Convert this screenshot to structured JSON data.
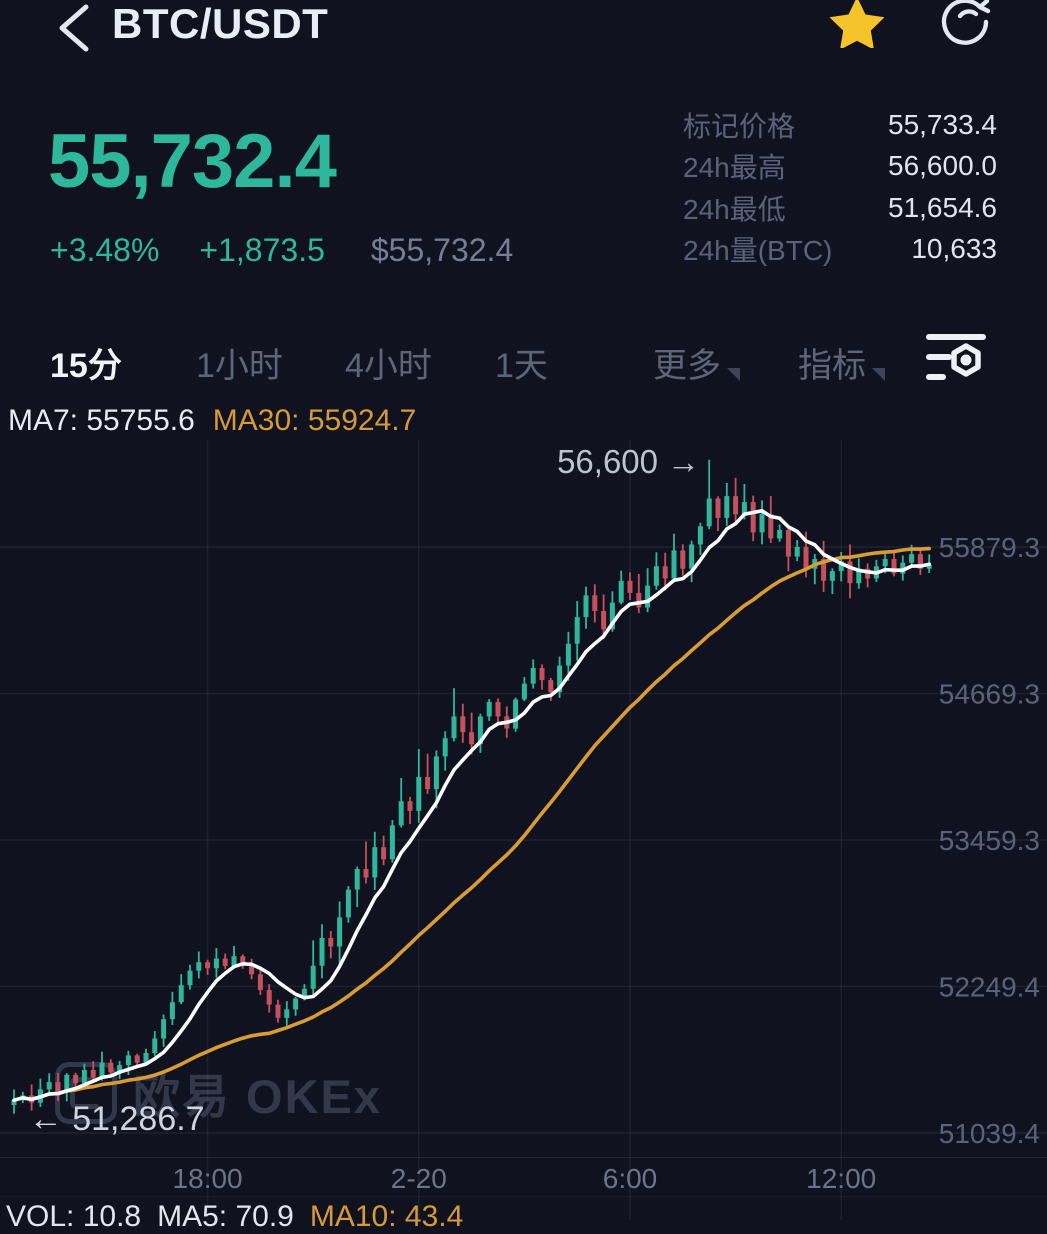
{
  "header": {
    "title": "BTC/USDT",
    "back_icon": "chevron-left",
    "favorite_icon": "star-filled",
    "refresh_icon": "refresh-circular-arrow",
    "star_color": "#f7c32b",
    "icon_color": "#e9edf5"
  },
  "ticker": {
    "last_price": "55,732.4",
    "change_percent": "+3.48%",
    "change_abs": "+1,873.5",
    "fiat_value": "$55,732.4",
    "up_color": "#2db89c"
  },
  "stats": {
    "rows": [
      {
        "label": "标记价格",
        "value": "55,733.4"
      },
      {
        "label": "24h最高",
        "value": "56,600.0"
      },
      {
        "label": "24h最低",
        "value": "51,654.6"
      },
      {
        "label": "24h量(BTC)",
        "value": "10,633"
      }
    ]
  },
  "toolbar": {
    "tabs": [
      {
        "label": "15分",
        "active": true,
        "dropdown": false
      },
      {
        "label": "1小时",
        "active": false,
        "dropdown": false
      },
      {
        "label": "4小时",
        "active": false,
        "dropdown": false
      },
      {
        "label": "1天",
        "active": false,
        "dropdown": false
      },
      {
        "label": "更多",
        "active": false,
        "dropdown": true
      },
      {
        "label": "指标",
        "active": false,
        "dropdown": true
      }
    ],
    "settings_icon": "indicator-settings"
  },
  "indicators": {
    "ma7_label": "MA7: 55755.6",
    "ma30_label": "MA30: 55924.7"
  },
  "volume_row": {
    "vol": "VOL: 10.8",
    "ma5": "MA5: 70.9",
    "ma10": "MA10: 43.4"
  },
  "watermark": {
    "text": "欧易 OKEx"
  },
  "chart_data": {
    "type": "candlestick",
    "interval": "15m",
    "title": "BTC/USDT 15m candles with MA7 and MA30 overlays",
    "y_axis_labels": [
      "55879.3",
      "54669.3",
      "53459.3",
      "52249.4",
      "51039.4"
    ],
    "y_axis_values": [
      55879.3,
      54669.3,
      53459.3,
      52249.4,
      51039.4
    ],
    "x_labels": [
      "18:00",
      "2-20",
      "6:00",
      "12:00"
    ],
    "x_label_candle_index": [
      22,
      46,
      70,
      94
    ],
    "grid": true,
    "legend_position": "top-left",
    "annotations": [
      {
        "text": "56,600 →",
        "candle_index": 79,
        "price": 56600,
        "align": "left-of-candle"
      },
      {
        "text": "← 51,286.7",
        "candle_index": 1,
        "price": 51286.7,
        "align": "right-of-candle"
      }
    ],
    "high_override": {
      "index": 79,
      "high": 56600
    },
    "low_override": {
      "index": 1,
      "low": 51286.7
    },
    "ma_series": [
      {
        "name": "MA7",
        "period": 7,
        "color": "#fbfcfe",
        "width": 3.6
      },
      {
        "name": "MA30",
        "period": 30,
        "color": "#d89b35",
        "width": 3.6
      }
    ],
    "closes": [
      51310,
      51350,
      51290,
      51400,
      51460,
      51380,
      51520,
      51450,
      51560,
      51500,
      51620,
      51540,
      51600,
      51680,
      51620,
      51700,
      51820,
      51980,
      52120,
      52260,
      52380,
      52450,
      52400,
      52480,
      52420,
      52500,
      52430,
      52350,
      52220,
      52100,
      51990,
      52060,
      52150,
      52230,
      52420,
      52650,
      52580,
      52820,
      53050,
      53220,
      53150,
      53400,
      53300,
      53580,
      53780,
      53700,
      53980,
      53880,
      54150,
      54300,
      54480,
      54350,
      54250,
      54480,
      54600,
      54480,
      54380,
      54620,
      54750,
      54880,
      54780,
      54680,
      54900,
      55080,
      55300,
      55480,
      55350,
      55200,
      55420,
      55600,
      55500,
      55380,
      55560,
      55720,
      55620,
      55850,
      55700,
      55900,
      56050,
      56280,
      56120,
      56300,
      56150,
      56250,
      56000,
      56150,
      55950,
      56020,
      55800,
      55880,
      55700,
      55780,
      55600,
      55680,
      55760,
      55580,
      55700,
      55620,
      55720,
      55780,
      55660,
      55750,
      55820,
      55700,
      55732.4
    ],
    "colors": {
      "up": "#2fb79c",
      "down": "#c4515c",
      "grid": "rgba(160,172,205,0.09)",
      "y_label": "#5a627b",
      "annotation": "#bcc2cf"
    }
  }
}
